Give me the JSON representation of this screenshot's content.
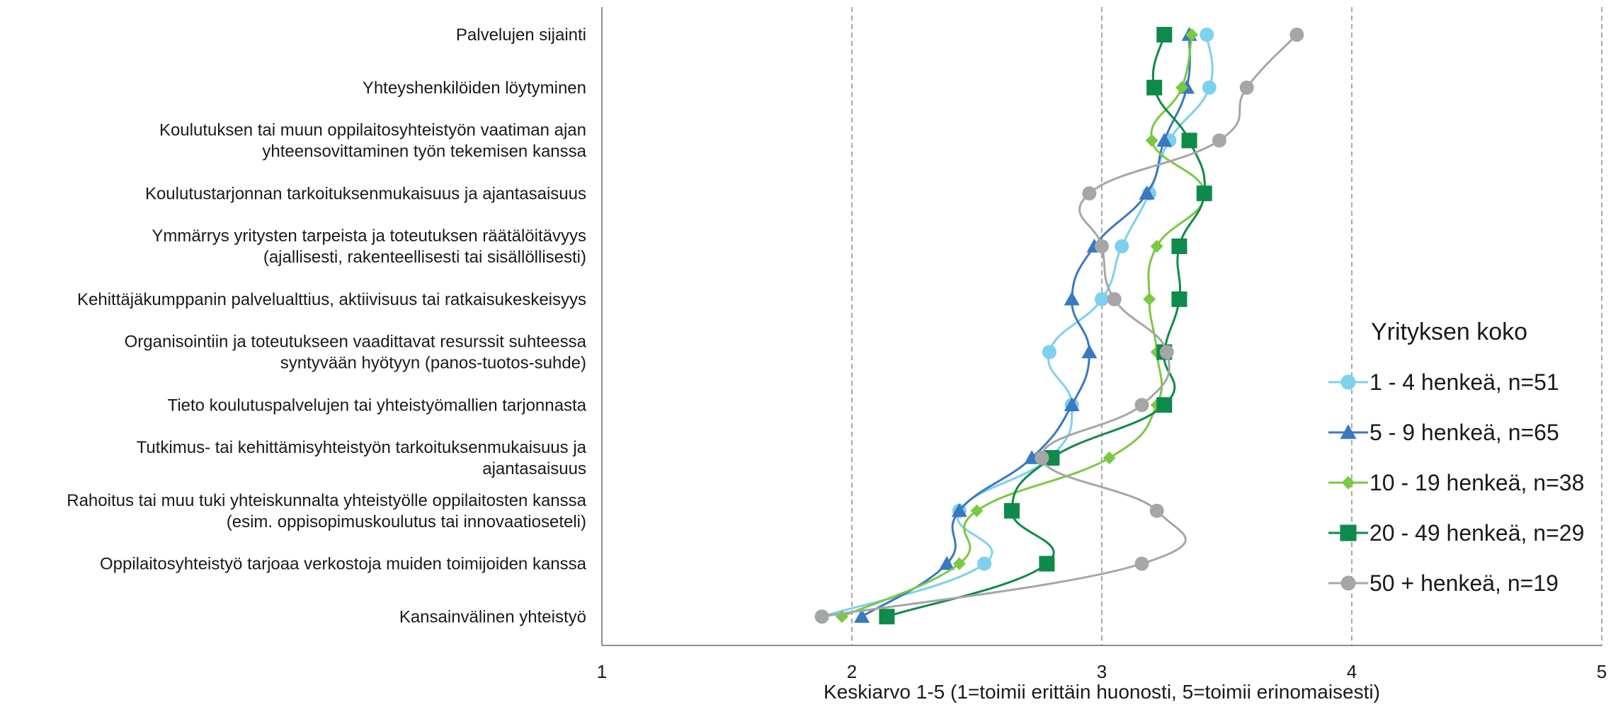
{
  "chart_data": {
    "type": "line",
    "orientation": "horizontal",
    "categories": [
      [
        "Palvelujen sijainti"
      ],
      [
        "Yhteyshenkilöiden löytyminen"
      ],
      [
        "Koulutuksen tai muun oppilaitosyhteistyön vaatiman ajan",
        "yhteensovittaminen työn tekemisen kanssa"
      ],
      [
        "Koulutustarjonnan tarkoituksenmukaisuus ja ajantasaisuus"
      ],
      [
        "Ymmärrys yritysten tarpeista ja toteutuksen räätälöitävyys",
        "(ajallisesti, rakenteellisesti tai sisällöllisesti)"
      ],
      [
        "Kehittäjäkumppanin palvelualttius, aktiivisuus tai ratkaisukeskeisyys"
      ],
      [
        "Organisointiin ja toteutukseen vaadittavat resurssit suhteessa",
        "syntyvään hyötyyn (panos-tuotos-suhde)"
      ],
      [
        "Tieto koulutuspalvelujen tai yhteistyömallien tarjonnasta"
      ],
      [
        "Tutkimus- tai kehittämisyhteistyön tarkoituksenmukaisuus ja",
        "ajantasaisuus"
      ],
      [
        "Rahoitus tai muu tuki yhteiskunnalta yhteistyölle oppilaitosten kanssa",
        "(esim. oppisopimuskoulutus tai innovaatioseteli)"
      ],
      [
        "Oppilaitosyhteistyö tarjoaa verkostoja muiden toimijoiden kanssa"
      ],
      [
        "Kansainvälinen yhteistyö"
      ]
    ],
    "series": [
      {
        "name": "1 - 4 henkeä, n=51",
        "color": "#7dd0ee",
        "marker": "circle",
        "values": [
          3.42,
          3.43,
          3.27,
          3.19,
          3.08,
          3.0,
          2.79,
          2.88,
          2.79,
          2.43,
          2.53,
          1.88
        ]
      },
      {
        "name": "5 - 9 henkeä, n=65",
        "color": "#3a78c2",
        "marker": "triangle",
        "values": [
          3.35,
          3.34,
          3.25,
          3.18,
          2.97,
          2.88,
          2.95,
          2.88,
          2.72,
          2.43,
          2.38,
          2.04
        ]
      },
      {
        "name": "10 - 19 henkeä, n=38",
        "color": "#7ac943",
        "marker": "diamond",
        "values": [
          3.36,
          3.32,
          3.2,
          3.41,
          3.22,
          3.19,
          3.22,
          3.22,
          3.03,
          2.5,
          2.43,
          1.96
        ]
      },
      {
        "name": "20 - 49 henkeä, n=29",
        "color": "#0e8a4a",
        "marker": "square",
        "values": [
          3.25,
          3.21,
          3.35,
          3.41,
          3.31,
          3.31,
          3.25,
          3.25,
          2.8,
          2.64,
          2.78,
          2.14
        ]
      },
      {
        "name": "50 + henkeä, n=19",
        "color": "#a6a6a6",
        "marker": "circle",
        "values": [
          3.78,
          3.58,
          3.47,
          2.95,
          3.0,
          3.05,
          3.26,
          3.16,
          2.76,
          3.22,
          3.16,
          1.88
        ]
      }
    ],
    "x_axis": {
      "label": "Keskiarvo 1-5 (1=toimii erittäin huonosti, 5=toimii erinomaisesti)",
      "min": 1,
      "max": 5,
      "ticks": [
        "1",
        "2",
        "3",
        "4",
        "5"
      ],
      "gridlines": "dashed vertical"
    },
    "legend": {
      "title": "Yrityksen koko",
      "position": "right"
    }
  }
}
